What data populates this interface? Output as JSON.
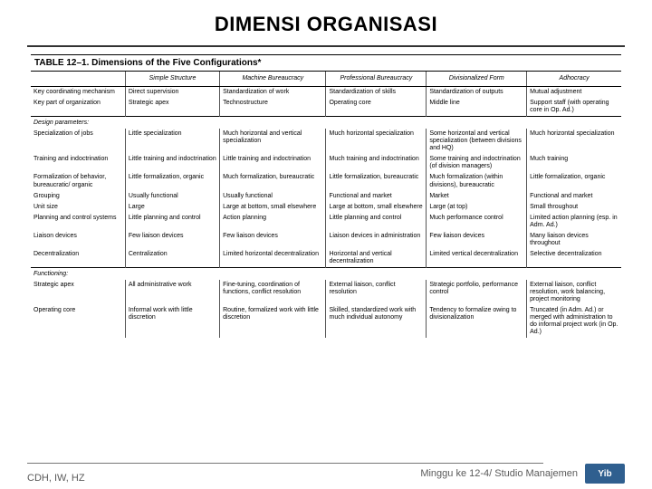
{
  "title": "DIMENSI ORGANISASI",
  "table": {
    "caption": "TABLE 12–1.  Dimensions of the Five Configurations*",
    "columns": [
      "",
      "Simple Structure",
      "Machine Bureaucracy",
      "Professional Bureaucracy",
      "Divisionalized Form",
      "Adhocracy"
    ],
    "groups": [
      {
        "label": "",
        "rows": [
          {
            "head": "Key coordinating mechanism",
            "cells": [
              "Direct supervision",
              "Standardization of work",
              "Standardization of skills",
              "Standardization of outputs",
              "Mutual adjustment"
            ]
          },
          {
            "head": "Key part of organization",
            "cells": [
              "Strategic apex",
              "Technostructure",
              "Operating core",
              "Middle line",
              "Support staff (with operating core in Op. Ad.)"
            ]
          }
        ]
      },
      {
        "label": "Design parameters:",
        "rows": [
          {
            "head": "Specialization of jobs",
            "cells": [
              "Little specialization",
              "Much horizontal and vertical specialization",
              "Much horizontal specialization",
              "Some horizontal and vertical specialization (between divisions and HQ)",
              "Much horizontal specialization"
            ]
          },
          {
            "head": "Training and indoctrination",
            "cells": [
              "Little training and indoctrination",
              "Little training and indoctrination",
              "Much training and indoctrination",
              "Some training and indoctrination (of division managers)",
              "Much training"
            ]
          },
          {
            "head": "Formalization of behavior, bureaucratic/ organic",
            "cells": [
              "Little formalization, organic",
              "Much formalization, bureaucratic",
              "Little formalization, bureaucratic",
              "Much formalization (within divisions), bureaucratic",
              "Little formalization, organic"
            ]
          },
          {
            "head": "Grouping",
            "cells": [
              "Usually functional",
              "Usually functional",
              "Functional and market",
              "Market",
              "Functional and market"
            ]
          },
          {
            "head": "Unit size",
            "cells": [
              "Large",
              "Large at bottom, small elsewhere",
              "Large at bottom, small elsewhere",
              "Large (at top)",
              "Small throughout"
            ]
          },
          {
            "head": "Planning and control systems",
            "cells": [
              "Little planning and control",
              "Action planning",
              "Little planning and control",
              "Much performance control",
              "Limited action planning (esp. in Adm. Ad.)"
            ]
          },
          {
            "head": "Liaison devices",
            "cells": [
              "Few liaison devices",
              "Few liaison devices",
              "Liaison devices in administration",
              "Few liaison devices",
              "Many liaison devices throughout"
            ]
          },
          {
            "head": "Decentralization",
            "cells": [
              "Centralization",
              "Limited horizontal decentralization",
              "Horizontal and vertical decentralization",
              "Limited vertical decentralization",
              "Selective decentralization"
            ]
          }
        ]
      },
      {
        "label": "Functioning:",
        "rows": [
          {
            "head": "Strategic apex",
            "cells": [
              "All administrative work",
              "Fine-tuning, coordination of functions, conflict resolution",
              "External liaison, conflict resolution",
              "Strategic portfolio, performance control",
              "External liaison, conflict resolution, work balancing, project monitoring"
            ]
          },
          {
            "head": "Operating core",
            "cells": [
              "Informal work with little discretion",
              "Routine, formalized work with little discretion",
              "Skilled, standardized work with much individual autonomy",
              "Tendency to formalize owing to divisionalization",
              "Truncated (in Adm. Ad.) or merged with administration to do informal project work (in Op. Ad.)"
            ]
          }
        ]
      }
    ]
  },
  "footer": {
    "left": "CDH, IW, HZ",
    "right": "Minggu ke 12-4/ Studio Manajemen",
    "logo": "Yib"
  },
  "colors": {
    "rule": "#333333",
    "text": "#000000",
    "logo_bg": "#2f5f8f",
    "logo_fg": "#ffffff"
  }
}
